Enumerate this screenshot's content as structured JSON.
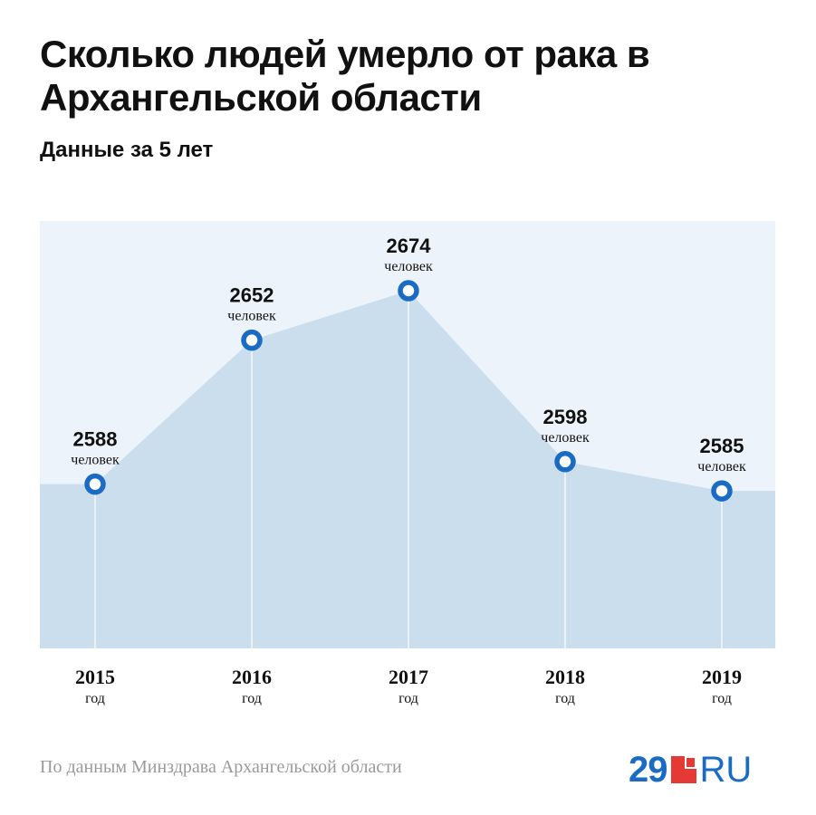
{
  "title": "Сколько людей умерло от рака в Архангельской области",
  "subtitle": "Данные за 5 лет",
  "source": "По данным Минздрава Архангельской области",
  "logo": {
    "number": "29",
    "suffix": "RU"
  },
  "colors": {
    "plot_bg": "#edf3fa",
    "area": "#cbdeed",
    "marker": "#1a6bc4",
    "logo_blue": "#1a6bc4",
    "logo_red": "#e53935"
  },
  "chart_data": {
    "type": "area",
    "title": "Сколько людей умерло от рака в Архангельской области",
    "subtitle": "Данные за 5 лет",
    "categories": [
      "2015",
      "2016",
      "2017",
      "2018",
      "2019"
    ],
    "category_unit": "год",
    "values": [
      2588,
      2652,
      2674,
      2598,
      2585
    ],
    "value_unit": "человек",
    "ylim": [
      2515,
      2705
    ],
    "grid": false,
    "legend": "none"
  }
}
